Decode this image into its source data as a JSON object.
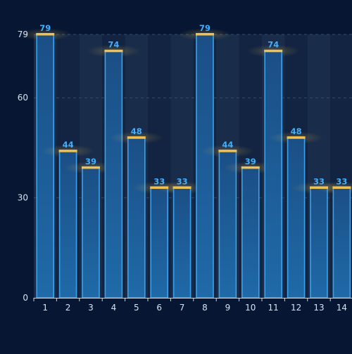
{
  "chart_data": {
    "type": "bar",
    "categories": [
      "1",
      "2",
      "3",
      "4",
      "5",
      "6",
      "7",
      "8",
      "9",
      "10",
      "11",
      "12",
      "13",
      "14"
    ],
    "values": [
      79,
      44,
      39,
      74,
      48,
      33,
      33,
      79,
      44,
      39,
      74,
      48,
      33,
      33
    ],
    "yticks": [
      0,
      30,
      60,
      79
    ],
    "ylim": [
      0,
      79
    ],
    "title": "",
    "xlabel": "",
    "ylabel": "",
    "grid": true,
    "legend": "none",
    "colors": {
      "background": "#061633",
      "bar_fill_top": "#1b4f86",
      "bar_fill_bottom": "#1f6aa8",
      "bar_stroke": "#3aa2ec",
      "bar_cap": "#f2c14e",
      "value_label": "#3fb0ff",
      "axis_text": "#d6e4f2",
      "grid": "#34506f",
      "column_band": "#2a3f5c"
    }
  }
}
